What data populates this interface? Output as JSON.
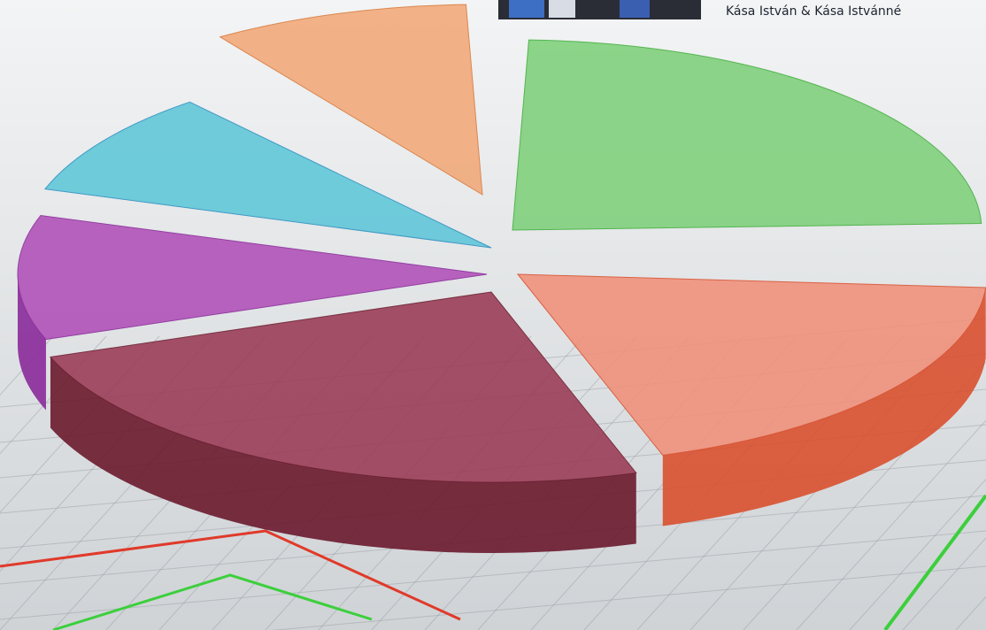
{
  "caption": "Kása István & Kása Istvánné"
}
